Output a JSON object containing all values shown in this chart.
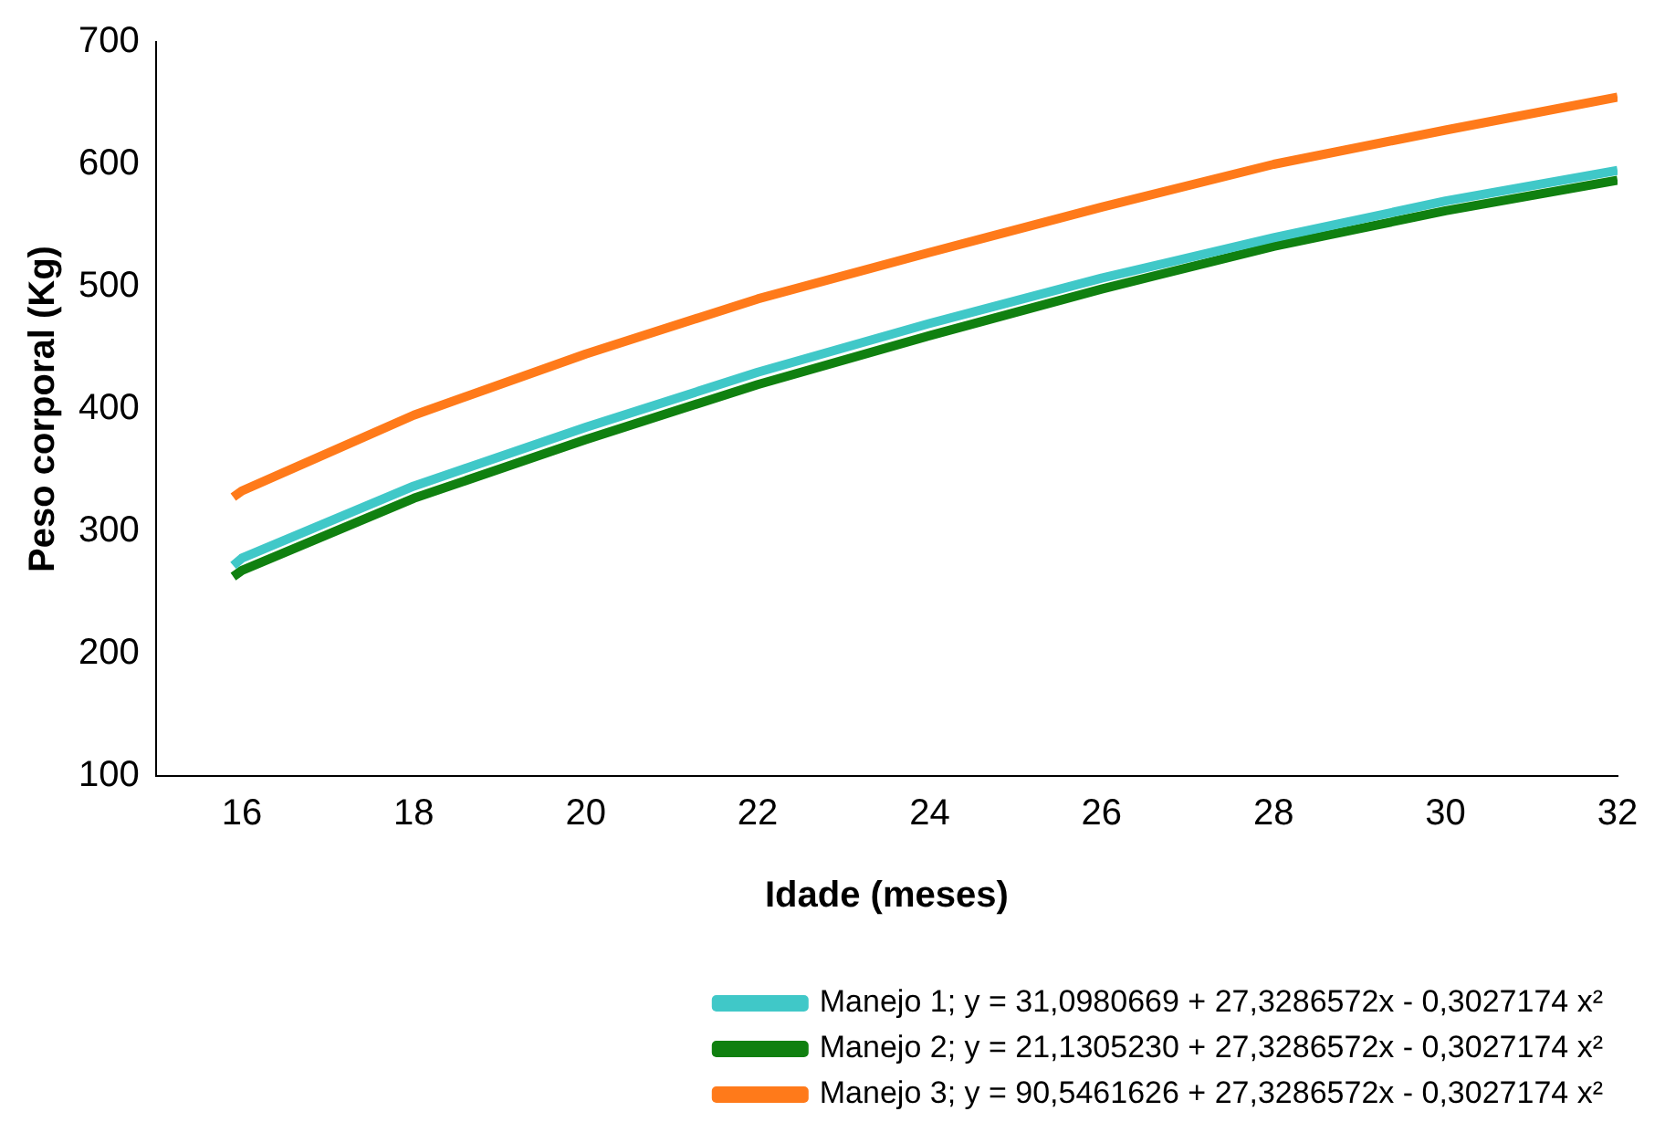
{
  "chart_data": {
    "type": "line",
    "xlabel": "Idade (meses)",
    "ylabel": "Peso corporal (Kg)",
    "xlim": [
      15,
      32
    ],
    "xticks": [
      16,
      18,
      20,
      22,
      24,
      26,
      28,
      30,
      32
    ],
    "ylim": [
      100,
      700
    ],
    "yticks": [
      100,
      200,
      300,
      400,
      500,
      600,
      700
    ],
    "grid": false,
    "legend": "bottom",
    "marker": "none",
    "line_style": "solid",
    "series": [
      {
        "name": "Manejo 1; y = 31,0980669 + 27,3286572x - 0,3027174 x²",
        "color": "#40c8c8",
        "x": [
          15.9,
          16,
          18,
          20,
          22,
          24,
          26,
          28,
          30,
          32
        ],
        "values": [
          272,
          278,
          337,
          385,
          430,
          470,
          507,
          540,
          570,
          595
        ]
      },
      {
        "name": "Manejo 2; y = 21,1305230 + 27,3286572x - 0,3027174 x²",
        "color": "#108010",
        "x": [
          15.9,
          16,
          18,
          20,
          22,
          24,
          26,
          28,
          30,
          32
        ],
        "values": [
          263,
          268,
          327,
          375,
          420,
          460,
          498,
          533,
          562,
          587
        ]
      },
      {
        "name": "Manejo 3; y = 90,5461626 + 27,3286572x - 0,3027174 x²",
        "color": "#ff7a1a",
        "x": [
          15.9,
          16,
          18,
          20,
          22,
          24,
          26,
          28,
          30,
          32
        ],
        "values": [
          328,
          333,
          395,
          445,
          490,
          528,
          565,
          600,
          628,
          655
        ]
      }
    ]
  }
}
